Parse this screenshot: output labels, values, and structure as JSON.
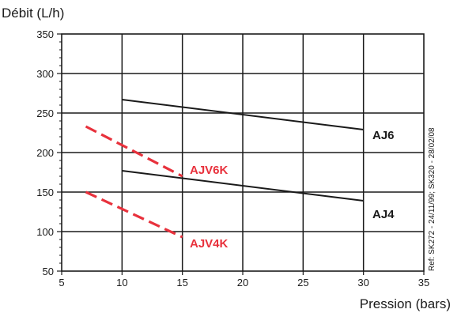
{
  "chart_data": {
    "type": "line",
    "xlabel": "Pression (bars)",
    "ylabel": "Débit (L/h)",
    "xlim": [
      5,
      35
    ],
    "ylim": [
      50,
      350
    ],
    "xticks": [
      5,
      10,
      15,
      20,
      25,
      30,
      35
    ],
    "yticks": [
      50,
      100,
      150,
      200,
      250,
      300,
      350
    ],
    "grid": true,
    "annotation": "Ref: SK272 - 24/11/99; SK320 - 28/02/08",
    "series": [
      {
        "name": "AJ6",
        "x": [
          10,
          30
        ],
        "y": [
          267,
          229
        ],
        "color": "#1a1a1a",
        "style": "solid"
      },
      {
        "name": "AJ4",
        "x": [
          10,
          30
        ],
        "y": [
          177,
          139
        ],
        "color": "#1a1a1a",
        "style": "solid"
      },
      {
        "name": "AJV6K",
        "x": [
          7,
          15
        ],
        "y": [
          233,
          170
        ],
        "color": "#e8313c",
        "style": "dashed"
      },
      {
        "name": "AJV4K",
        "x": [
          7,
          15
        ],
        "y": [
          150,
          93
        ],
        "color": "#e8313c",
        "style": "dashed"
      }
    ]
  }
}
